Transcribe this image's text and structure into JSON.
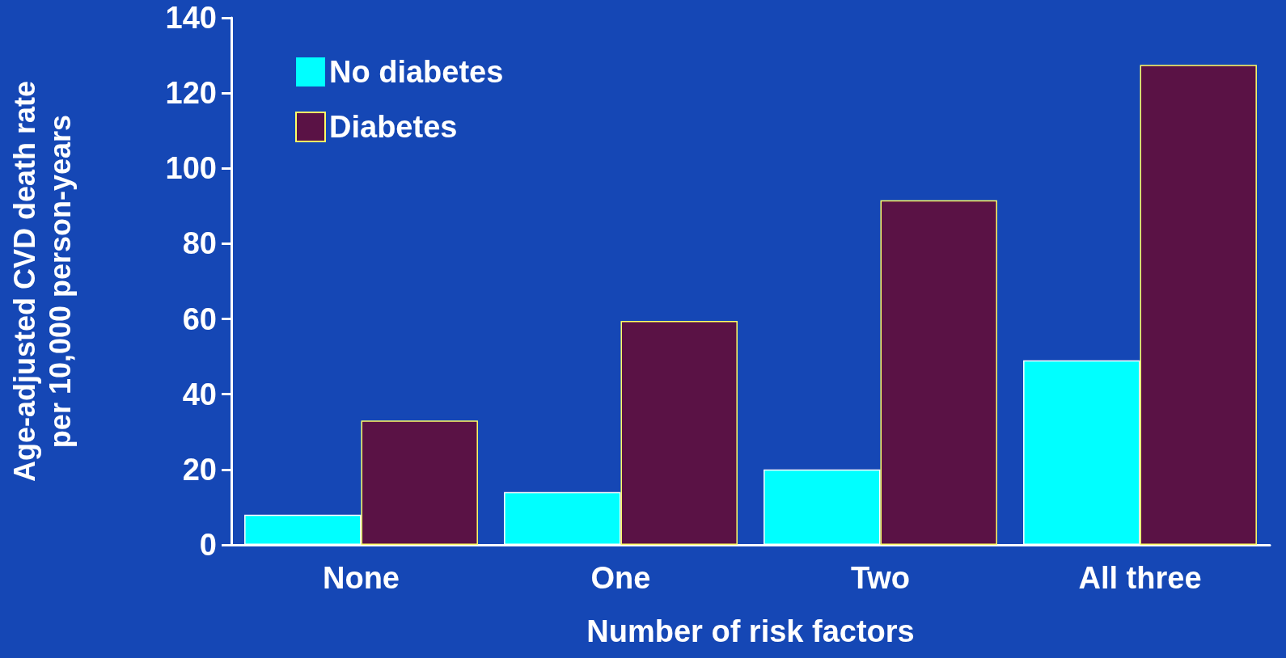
{
  "chart_data": {
    "type": "bar",
    "xlabel": "Number of risk factors",
    "ylabel": "Age-adjusted CVD death rate\nper 10,000 person-years",
    "categories": [
      "None",
      "One",
      "Two",
      "All three"
    ],
    "series": [
      {
        "name": "No diabetes",
        "color": "#00ffff",
        "values": [
          8,
          14,
          20,
          49
        ]
      },
      {
        "name": "Diabetes",
        "color": "#5a1245",
        "values": [
          33,
          59.5,
          91.5,
          127.5
        ]
      }
    ],
    "ylim": [
      0,
      140
    ],
    "yticks": [
      0,
      20,
      40,
      60,
      80,
      100,
      120,
      140
    ],
    "grid": false,
    "legend": "top left"
  }
}
